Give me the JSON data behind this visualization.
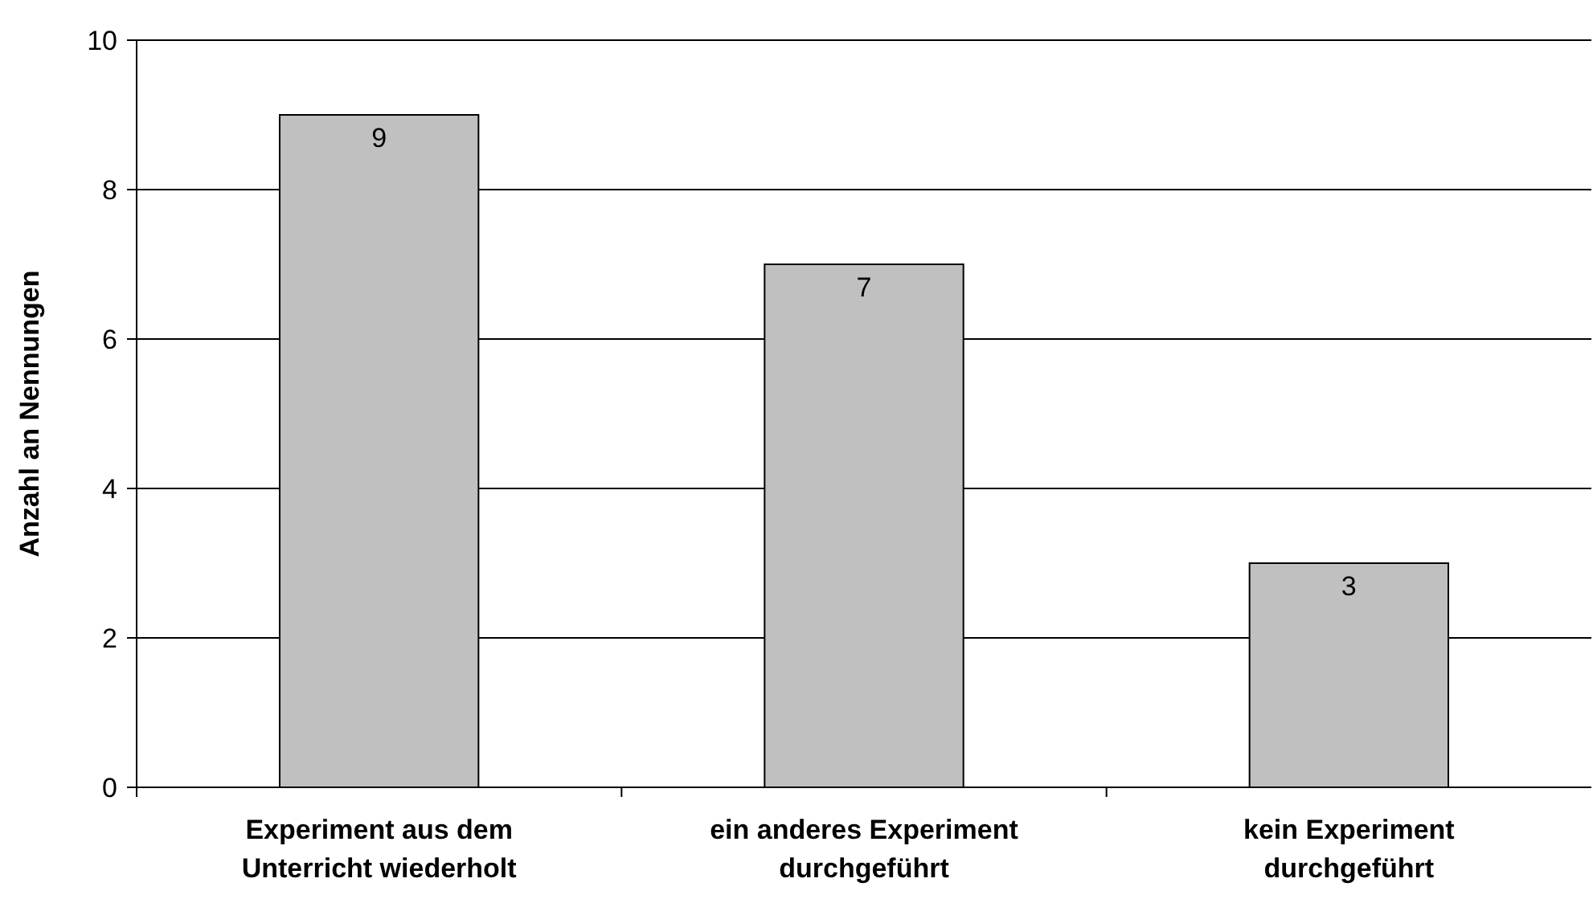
{
  "chart_data": {
    "type": "bar",
    "ylabel": "Anzahl an Nennungen",
    "categories": [
      "Experiment aus dem Unterricht wiederholt",
      "ein anderes Experiment durchgeführt",
      "kein Experiment durchgeführt"
    ],
    "values": [
      9,
      7,
      3
    ],
    "color": "#c0c0c0",
    "ylim": [
      0,
      10
    ],
    "yticks": [
      0,
      2,
      4,
      6,
      8,
      10
    ],
    "grid": "y",
    "data_labels": true
  }
}
